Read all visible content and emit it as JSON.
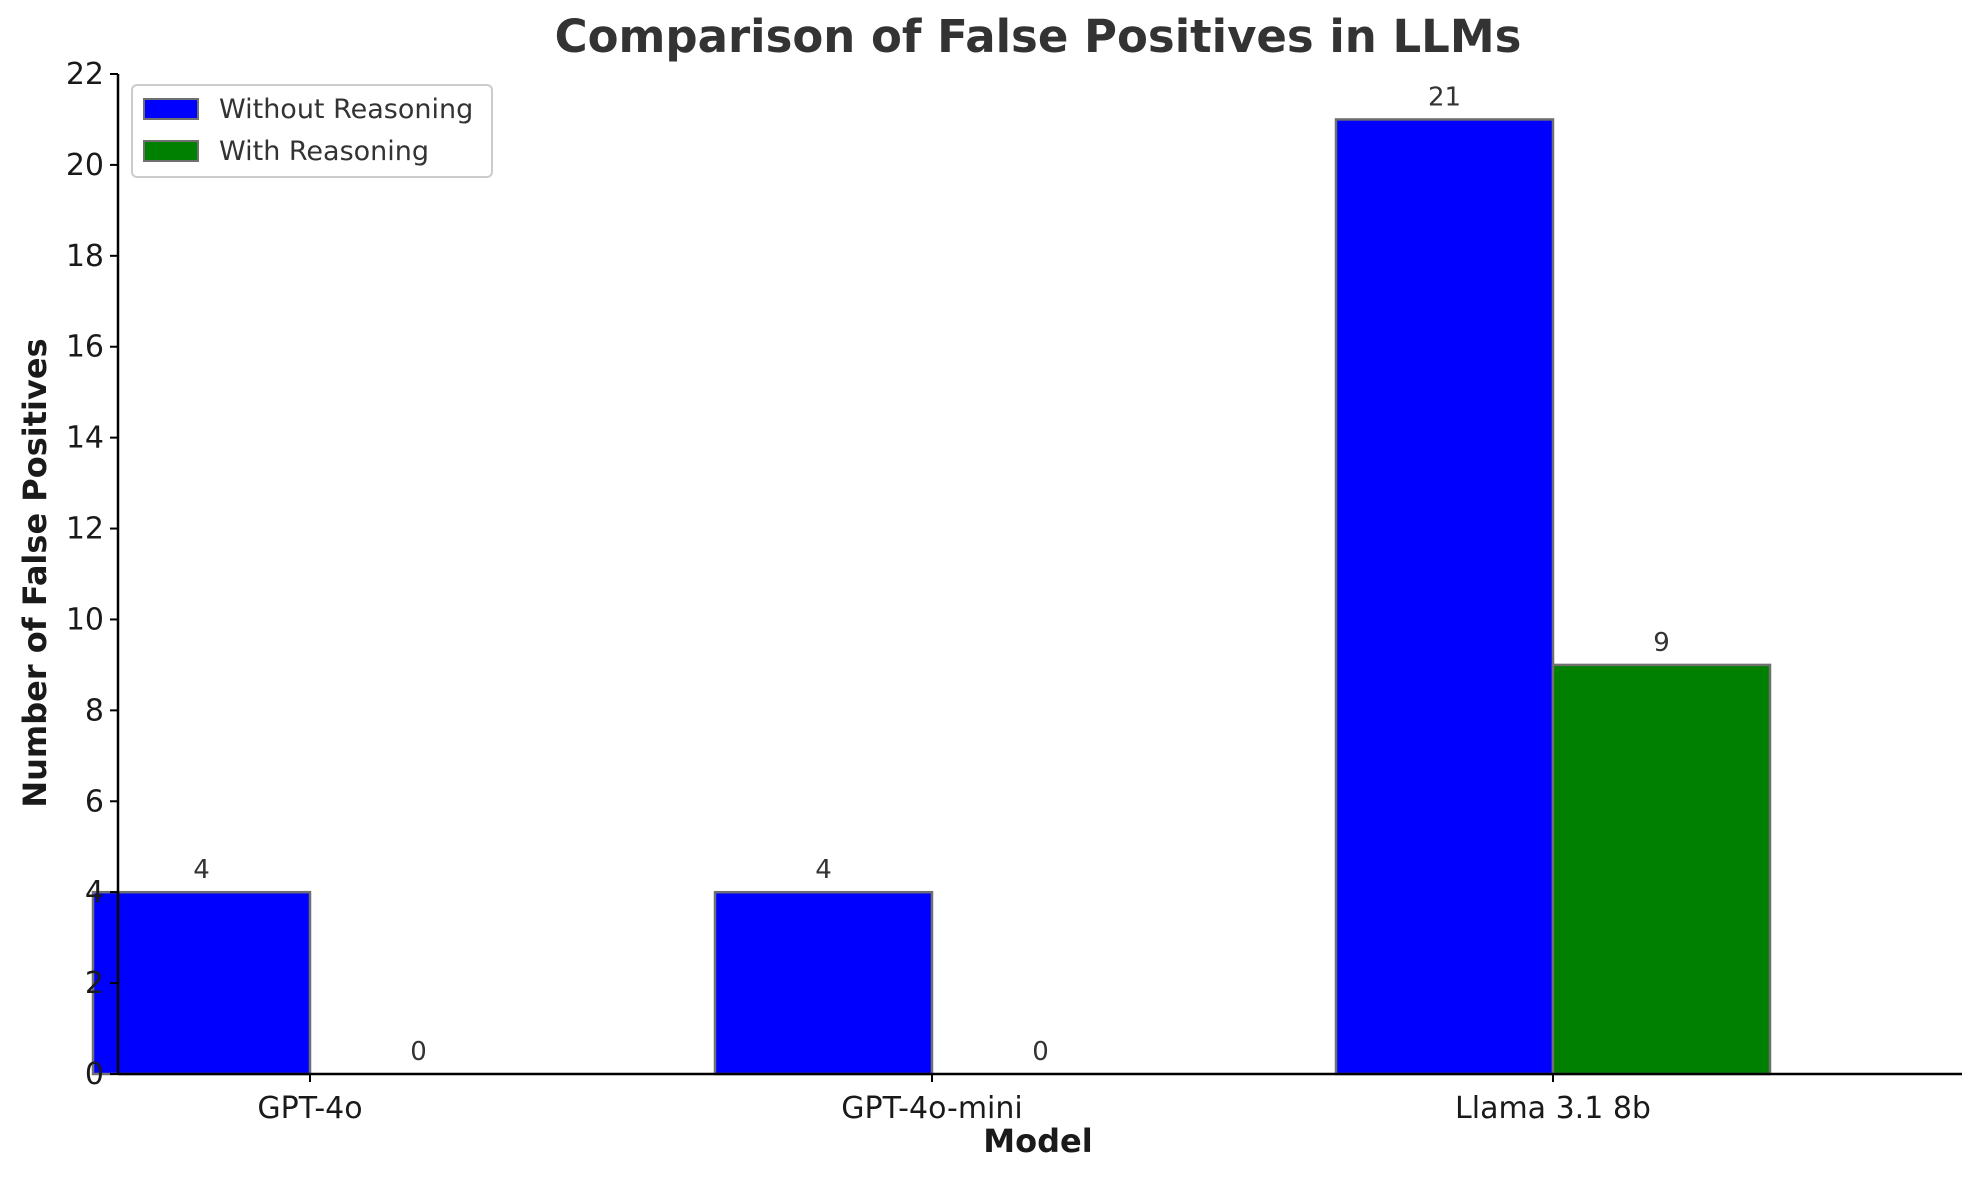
{
  "chart_data": {
    "type": "bar",
    "title": "Comparison of False Positives in LLMs",
    "xlabel": "Model",
    "ylabel": "Number of False Positives",
    "categories": [
      "GPT-4o",
      "GPT-4o-mini",
      "Llama 3.1 8b"
    ],
    "series": [
      {
        "name": "Without Reasoning",
        "values": [
          4,
          4,
          21
        ],
        "color": "#0000ff"
      },
      {
        "name": "With Reasoning",
        "values": [
          0,
          0,
          9
        ],
        "color": "#008000"
      }
    ],
    "ylim": [
      0,
      22
    ],
    "yticks": [
      0,
      2,
      4,
      6,
      8,
      10,
      12,
      14,
      16,
      18,
      20,
      22
    ],
    "grid": false,
    "legend_position": "top-left",
    "data_labels": true
  }
}
